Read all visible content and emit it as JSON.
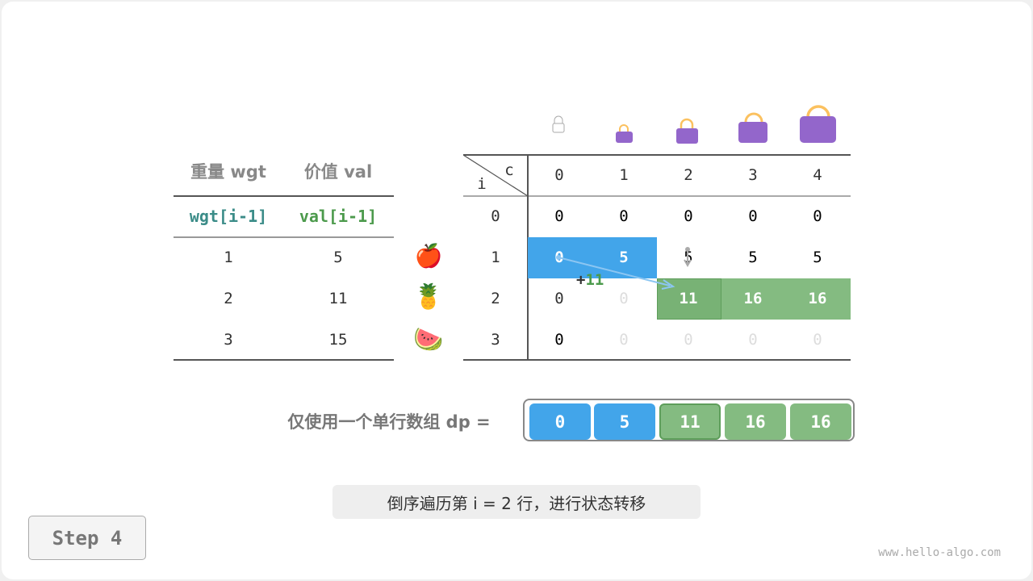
{
  "left_table": {
    "headers": [
      "重量 wgt",
      "价值 val"
    ],
    "subheaders": [
      "wgt[i-1]",
      "val[i-1]"
    ],
    "rows": [
      [
        "1",
        "5"
      ],
      [
        "2",
        "11"
      ],
      [
        "3",
        "15"
      ]
    ]
  },
  "items": [
    {
      "icon": "apple",
      "glyph": "🍎"
    },
    {
      "icon": "pineapple",
      "glyph": "🍍"
    },
    {
      "icon": "watermelon",
      "glyph": "🍉"
    }
  ],
  "dp_table": {
    "row_label": "i",
    "col_label": "c",
    "cols": [
      "0",
      "1",
      "2",
      "3",
      "4"
    ],
    "row_index": [
      "0",
      "1",
      "2",
      "3"
    ],
    "rows": [
      [
        "0",
        "0",
        "0",
        "0",
        "0"
      ],
      [
        "0",
        "5",
        "5",
        "5",
        "5"
      ],
      [
        "0",
        "0",
        "11",
        "16",
        "16"
      ],
      [
        "0",
        "0",
        "0",
        "0",
        "0"
      ]
    ],
    "annotation": "+",
    "annotation_value": "11"
  },
  "array": {
    "label": "仅使用一个单行数组 dp =",
    "values": [
      "0",
      "5",
      "11",
      "16",
      "16"
    ]
  },
  "caption": "倒序遍历第 i = 2 行，进行状态转移",
  "step_button": "Step 4",
  "watermark": "www.hello-algo.com",
  "colors": {
    "blue": "#42a5ea",
    "green": "#84bb81",
    "dark_green": "#4c9a4c",
    "teal": "#3b8c88",
    "bag": "#9366cb",
    "handle": "#fbc15f"
  }
}
